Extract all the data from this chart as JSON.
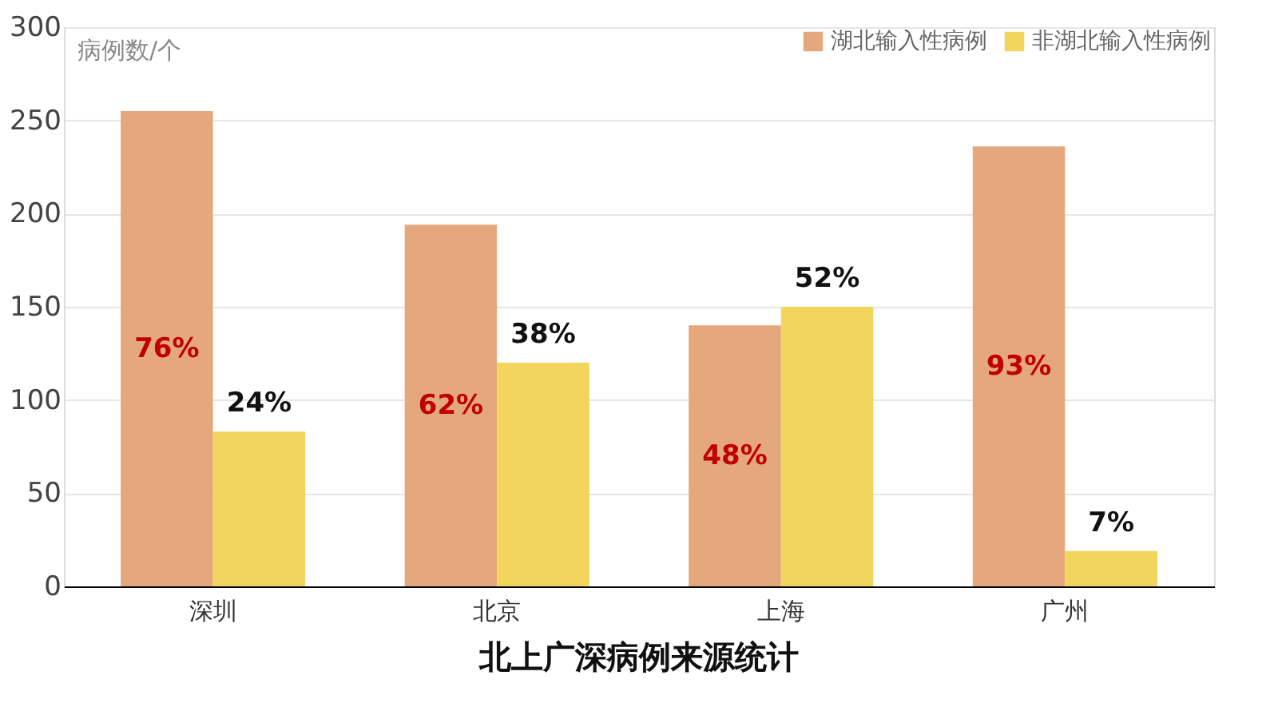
{
  "chart_data": {
    "type": "bar",
    "title": "北上广深病例来源统计",
    "ylabel": "病例数/个",
    "categories": [
      "深圳",
      "北京",
      "上海",
      "广州"
    ],
    "series": [
      {
        "name": "湖北输入性病例",
        "color": "#e5a87c",
        "values": [
          255,
          194,
          140,
          236
        ]
      },
      {
        "name": "非湖北输入性病例",
        "color": "#f2d55c",
        "values": [
          83,
          120,
          150,
          19
        ]
      }
    ],
    "annotations": [
      "76%",
      "62%",
      "48%",
      "93%",
      "24%",
      "38%",
      "52%",
      "7%"
    ],
    "ylim": [
      0,
      300
    ],
    "yticks": [
      0,
      50,
      100,
      150,
      200,
      250,
      300
    ],
    "grid": "y",
    "legend": "top right"
  }
}
